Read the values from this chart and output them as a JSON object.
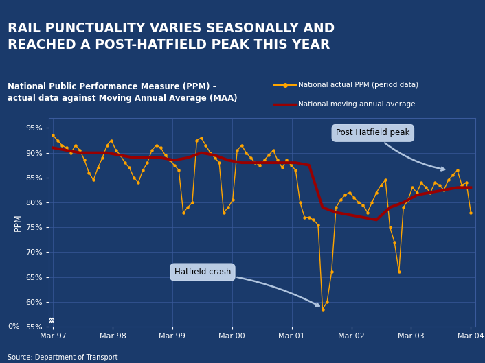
{
  "title": "RAIL PUNCTUALITY VARIES SEASONALLY AND\nREACHED A POST-HATFIELD PEAK THIS YEAR",
  "subtitle": "National Public Performance Measure (PPM) –\nactual data against Moving Annual Average (MAA)",
  "xlabel_ticks": [
    "Mar 97",
    "Mar 98",
    "Mar 99",
    "Mar 00",
    "Mar 01",
    "Mar 02",
    "Mar 03",
    "Mar 04"
  ],
  "ylabel": "PPM",
  "source": "Source: Department of Transport",
  "legend_line1": "National actual PPM (period data)",
  "legend_line2": "National moving annual average",
  "bg_color": "#1a3a6b",
  "title_bg": "#1c1c7a",
  "grid_color": "#3a5a9b",
  "orange_color": "#FFA500",
  "dark_red_color": "#990000",
  "text_color": "white",
  "annotation_bg": "#c8d8ee",
  "annotation_text": "black",
  "orange_x": [
    0,
    1,
    2,
    3,
    4,
    5,
    6,
    7,
    8,
    9,
    10,
    11,
    12,
    13,
    14,
    15,
    16,
    17,
    18,
    19,
    20,
    21,
    22,
    23,
    24,
    25,
    26,
    27,
    28,
    29,
    30,
    31,
    32,
    33,
    34,
    35,
    36,
    37,
    38,
    39,
    40,
    41,
    42,
    43,
    44,
    45,
    46,
    47,
    48,
    49,
    50,
    51,
    52,
    53,
    54,
    55,
    56,
    57,
    58,
    59,
    60,
    61,
    62,
    63,
    64,
    65,
    66,
    67,
    68,
    69,
    70,
    71,
    72,
    73,
    74,
    75,
    76,
    77,
    78,
    79,
    80,
    81,
    82,
    83,
    84,
    85,
    86,
    87,
    88,
    89,
    90,
    91,
    92,
    93
  ],
  "orange_y": [
    93.5,
    92.5,
    91.5,
    91,
    90,
    91.5,
    90.5,
    88.5,
    86,
    84.5,
    87,
    89,
    91.5,
    92.5,
    90.5,
    89.5,
    88,
    87,
    85,
    84,
    86.5,
    88,
    90.5,
    91.5,
    91,
    89.5,
    88.5,
    87.5,
    86.5,
    78,
    79,
    80,
    92.5,
    93,
    91.5,
    90,
    89,
    88,
    78,
    79,
    80.5,
    90.5,
    91.5,
    90,
    89,
    88,
    87.5,
    88.5,
    89.5,
    90.5,
    88.5,
    87,
    88.5,
    87.5,
    86.5,
    80,
    77,
    77,
    76.5,
    75.5,
    58.5,
    60,
    66,
    79,
    80.5,
    81.5,
    82,
    81,
    80,
    79.5,
    78,
    80,
    82,
    83.5,
    84.5,
    75,
    72,
    66,
    79,
    80.5,
    83,
    82,
    84,
    83,
    82,
    84,
    83.5,
    82.5,
    84.5,
    85.5,
    86.5,
    83.5,
    84,
    78
  ],
  "red_x": [
    0,
    3,
    6,
    9,
    12,
    15,
    18,
    21,
    24,
    27,
    30,
    33,
    36,
    39,
    42,
    45,
    48,
    51,
    54,
    57,
    60,
    63,
    66,
    69,
    72,
    75,
    78,
    81,
    84,
    87,
    90,
    93
  ],
  "red_y": [
    91,
    90.5,
    90,
    90,
    90,
    89.5,
    89,
    89,
    89,
    88.5,
    89,
    90,
    89.5,
    88.5,
    88,
    88,
    88,
    88,
    88,
    87.5,
    79,
    78,
    77.5,
    77,
    76.5,
    79,
    80,
    81.5,
    82,
    82.5,
    83,
    83
  ]
}
